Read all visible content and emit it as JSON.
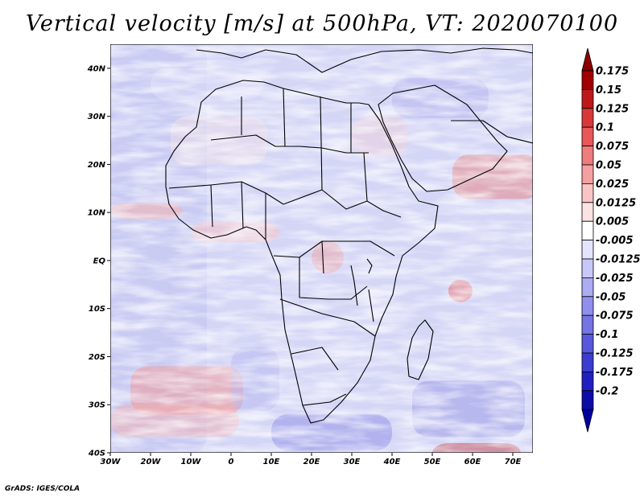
{
  "title": "Vertical velocity [m/s] at 500hPa, VT: 2020070100",
  "credit": "GrADS: IGES/COLA",
  "map": {
    "lon_range": [
      -30,
      75
    ],
    "lat_range": [
      -40,
      45
    ],
    "lon_ticks": [
      {
        "value": -30,
        "label": "30W"
      },
      {
        "value": -20,
        "label": "20W"
      },
      {
        "value": -10,
        "label": "10W"
      },
      {
        "value": 0,
        "label": "0"
      },
      {
        "value": 10,
        "label": "10E"
      },
      {
        "value": 20,
        "label": "20E"
      },
      {
        "value": 30,
        "label": "30E"
      },
      {
        "value": 40,
        "label": "40E"
      },
      {
        "value": 50,
        "label": "50E"
      },
      {
        "value": 60,
        "label": "60E"
      },
      {
        "value": 70,
        "label": "70E"
      }
    ],
    "lat_ticks": [
      {
        "value": 40,
        "label": "40N"
      },
      {
        "value": 30,
        "label": "30N"
      },
      {
        "value": 20,
        "label": "20N"
      },
      {
        "value": 10,
        "label": "10N"
      },
      {
        "value": 0,
        "label": "EQ"
      },
      {
        "value": -10,
        "label": "10S"
      },
      {
        "value": -20,
        "label": "20S"
      },
      {
        "value": -30,
        "label": "30S"
      },
      {
        "value": -40,
        "label": "40S"
      }
    ],
    "shading": "red = upward/positive, blue = downward/negative"
  },
  "colorbar": {
    "levels": [
      {
        "label": "0.175",
        "color": "#a00000"
      },
      {
        "label": "0.15",
        "color": "#c01818"
      },
      {
        "label": "0.125",
        "color": "#d83838"
      },
      {
        "label": "0.1",
        "color": "#e85858"
      },
      {
        "label": "0.075",
        "color": "#ee7c7c"
      },
      {
        "label": "0.05",
        "color": "#f4a0a0"
      },
      {
        "label": "0.025",
        "color": "#f8c4c4"
      },
      {
        "label": "0.0125",
        "color": "#fce2e2"
      },
      {
        "label": "0.005",
        "color": "#ffffff"
      },
      {
        "label": "-0.005",
        "color": "#e4e4fc"
      },
      {
        "label": "-0.0125",
        "color": "#c8c8f8"
      },
      {
        "label": "-0.025",
        "color": "#acacf2"
      },
      {
        "label": "-0.05",
        "color": "#9090ec"
      },
      {
        "label": "-0.075",
        "color": "#7474e4"
      },
      {
        "label": "-0.1",
        "color": "#5858dc"
      },
      {
        "label": "-0.125",
        "color": "#3c3cd0"
      },
      {
        "label": "-0.175",
        "color": "#2020c0"
      },
      {
        "label": "-0.2",
        "color": "#0c0ca8"
      }
    ],
    "top_color": "#8c0000",
    "bottom_color": "#0000a0"
  }
}
